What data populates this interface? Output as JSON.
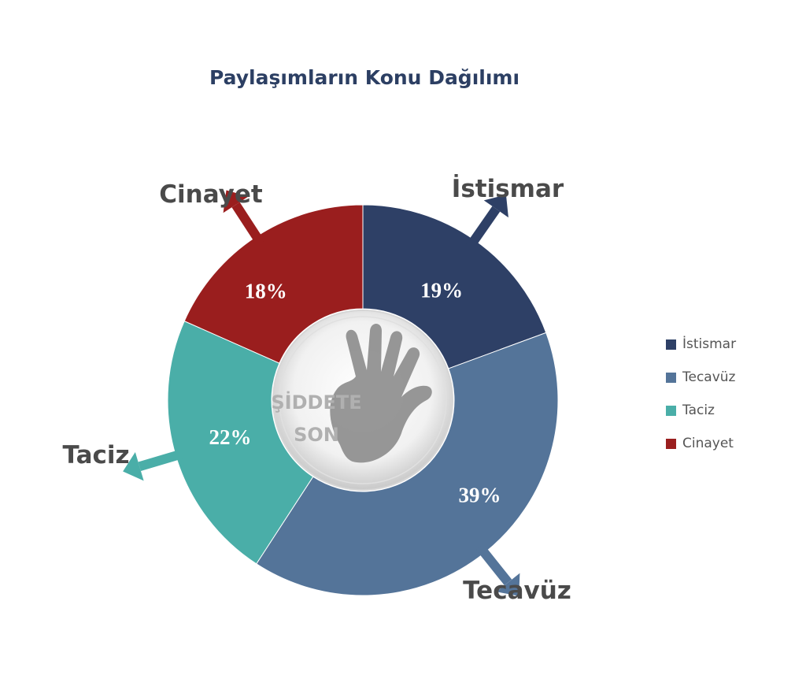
{
  "chart_data": {
    "type": "pie",
    "title": "Paylaşımların Konu Dağılımı",
    "series": [
      {
        "category": "İstismar",
        "value": 19,
        "label": "19%",
        "color": "#2e4066"
      },
      {
        "category": "Tecavüz",
        "value": 39,
        "label": "39%",
        "color": "#547499"
      },
      {
        "category": "Taciz",
        "value": 22,
        "label": "22%",
        "color": "#4aaea8"
      },
      {
        "category": "Cinayet",
        "value": 18,
        "label": "18%",
        "color": "#9a1e1e"
      }
    ],
    "legend_position": "right"
  },
  "center_logo": {
    "line1": "ŞİDDETE",
    "line2": "SON",
    "icon": "handprint-icon"
  }
}
